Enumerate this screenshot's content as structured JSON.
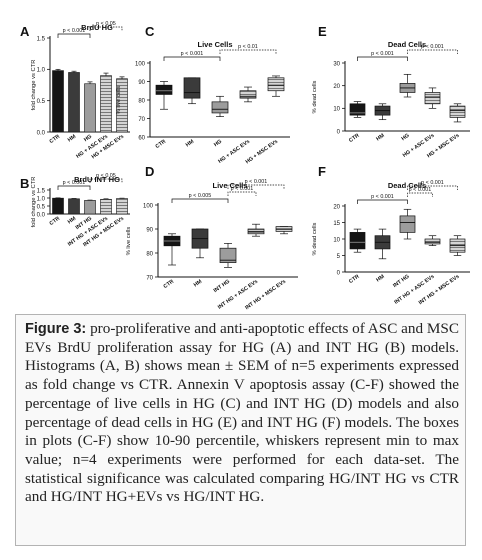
{
  "figure": {
    "panels": [
      {
        "letter": "A",
        "title": "BrdU HG"
      },
      {
        "letter": "B",
        "title": "BrdU INT HG"
      },
      {
        "letter": "C",
        "title": "Live Cells"
      },
      {
        "letter": "D",
        "title": "Live Cells"
      },
      {
        "letter": "E",
        "title": "Dead Cells"
      },
      {
        "letter": "F",
        "title": "Dead Cells"
      }
    ]
  },
  "caption": {
    "label": "Figure 3:",
    "text": "pro-proliferative and anti-apoptotic effects of ASC and MSC EVs BrdU proliferation assay for HG (A) and INT HG (B) models. Histograms (A, B) shows mean ± SEM of n=5 experiments expressed as fold change vs CTR. Annexin V apoptosis assay (C-F) showed the percentage of live cells in HG (C) and INT HG (D) models and also percentage of dead cells in HG (E) and INT HG (F) models. The boxes in plots (C-F) show 10-90 percentile, whiskers represent min to max value; n=4 experiments were performed for each data-set. The statistical significance was calculated comparing HG/INT HG vs CTR and HG/INT HG+EVs vs HG/INT HG."
  },
  "chart_data": [
    {
      "panel": "A",
      "type": "bar",
      "title": "BrdU HG",
      "ylabel": "fold change vs CTR",
      "ylim": [
        0,
        1.5
      ],
      "yticks": [
        0.0,
        0.5,
        1.0,
        1.5
      ],
      "categories": [
        "CTR",
        "HM",
        "HG",
        "HG + ASC EVs",
        "HG + MSC EVs"
      ],
      "values": [
        0.98,
        0.95,
        0.77,
        0.9,
        0.85
      ],
      "errors": [
        0.02,
        0.02,
        0.03,
        0.04,
        0.03
      ],
      "annotations": [
        {
          "text": "p < 0.001",
          "from": "CTR",
          "to": "HG"
        },
        {
          "text": "p < 0.05",
          "from": "HG",
          "to": "HG + MSC EVs"
        }
      ]
    },
    {
      "panel": "B",
      "type": "bar",
      "title": "BrdU INT HG",
      "ylabel": "fold change vs CTR",
      "ylim": [
        0,
        1.5
      ],
      "yticks": [
        0.0,
        0.5,
        1.0,
        1.5
      ],
      "categories": [
        "CTR",
        "HM",
        "INT HG",
        "INT HG + ASC EVs",
        "INT HG + MSC EVs"
      ],
      "values": [
        0.99,
        0.95,
        0.85,
        0.92,
        0.97
      ],
      "errors": [
        0.02,
        0.02,
        0.02,
        0.03,
        0.02
      ],
      "annotations": [
        {
          "text": "p < 0.001",
          "from": "CTR",
          "to": "INT HG"
        },
        {
          "text": "p < 0.05",
          "from": "INT HG",
          "to": "INT HG + MSC EVs"
        }
      ]
    },
    {
      "panel": "C",
      "type": "box",
      "title": "Live Cells",
      "ylabel": "% live cells",
      "ylim": [
        60,
        100
      ],
      "yticks": [
        60,
        70,
        80,
        90,
        100
      ],
      "categories": [
        "CTR",
        "HM",
        "HG",
        "HG + ASC EVs",
        "HG + MSC EVs"
      ],
      "boxes": [
        {
          "min": 75,
          "q1": 83,
          "med": 85,
          "q3": 88,
          "max": 90
        },
        {
          "min": 78,
          "q1": 81,
          "med": 84,
          "q3": 92,
          "max": 92
        },
        {
          "min": 71,
          "q1": 73,
          "med": 75,
          "q3": 79,
          "max": 82
        },
        {
          "min": 79,
          "q1": 81,
          "med": 82,
          "q3": 85,
          "max": 87
        },
        {
          "min": 82,
          "q1": 85,
          "med": 88,
          "q3": 92,
          "max": 93
        }
      ],
      "annotations": [
        {
          "text": "p < 0.001",
          "from": "CTR",
          "to": "HG"
        },
        {
          "text": "p < 0.01",
          "from": "HG",
          "to": "HG + MSC EVs"
        }
      ]
    },
    {
      "panel": "D",
      "type": "box",
      "title": "Live Cells",
      "ylabel": "% live cells",
      "ylim": [
        70,
        100
      ],
      "yticks": [
        70,
        80,
        90,
        100
      ],
      "categories": [
        "CTR",
        "HM",
        "INT HG",
        "INT HG + ASC EVs",
        "INT HG + MSC EVs"
      ],
      "boxes": [
        {
          "min": 75,
          "q1": 83,
          "med": 85,
          "q3": 87,
          "max": 88
        },
        {
          "min": 78,
          "q1": 82,
          "med": 86,
          "q3": 90,
          "max": 90
        },
        {
          "min": 74,
          "q1": 76,
          "med": 77,
          "q3": 82,
          "max": 84
        },
        {
          "min": 87,
          "q1": 88,
          "med": 89,
          "q3": 90,
          "max": 92
        },
        {
          "min": 88,
          "q1": 89,
          "med": 90,
          "q3": 91,
          "max": 91
        }
      ],
      "annotations": [
        {
          "text": "p < 0.005",
          "from": "CTR",
          "to": "INT HG"
        },
        {
          "text": "p < 0.001",
          "from": "INT HG",
          "to": "INT HG + ASC EVs"
        },
        {
          "text": "p < 0.001",
          "from": "INT HG",
          "to": "INT HG + MSC EVs"
        }
      ]
    },
    {
      "panel": "E",
      "type": "box",
      "title": "Dead Cells",
      "ylabel": "% dead cells",
      "ylim": [
        0,
        30
      ],
      "yticks": [
        0,
        10,
        20,
        30
      ],
      "categories": [
        "CTR",
        "HM",
        "HG",
        "HG + ASC EVs",
        "HG + MSC EVs"
      ],
      "boxes": [
        {
          "min": 6,
          "q1": 7,
          "med": 8,
          "q3": 12,
          "max": 13
        },
        {
          "min": 5,
          "q1": 7,
          "med": 9,
          "q3": 11,
          "max": 12
        },
        {
          "min": 15,
          "q1": 17,
          "med": 19,
          "q3": 21,
          "max": 25
        },
        {
          "min": 10,
          "q1": 12,
          "med": 15,
          "q3": 17,
          "max": 19
        },
        {
          "min": 4,
          "q1": 6,
          "med": 9,
          "q3": 11,
          "max": 12
        }
      ],
      "annotations": [
        {
          "text": "p < 0.001",
          "from": "CTR",
          "to": "HG"
        },
        {
          "text": "p < 0.001",
          "from": "HG",
          "to": "HG + MSC EVs"
        }
      ]
    },
    {
      "panel": "F",
      "type": "box",
      "title": "Dead Cells",
      "ylabel": "% dead cells",
      "ylim": [
        0,
        20
      ],
      "yticks": [
        0,
        5,
        10,
        15,
        20
      ],
      "categories": [
        "CTR",
        "HM",
        "INT HG",
        "INT HG + ASC EVs",
        "INT HG + MSC EVs"
      ],
      "boxes": [
        {
          "min": 6,
          "q1": 7,
          "med": 9,
          "q3": 12,
          "max": 13
        },
        {
          "min": 4,
          "q1": 7,
          "med": 9,
          "q3": 11,
          "max": 13
        },
        {
          "min": 10,
          "q1": 12,
          "med": 15,
          "q3": 17,
          "max": 19
        },
        {
          "min": 8,
          "q1": 8.5,
          "med": 9,
          "q3": 10,
          "max": 11
        },
        {
          "min": 5,
          "q1": 6,
          "med": 8,
          "q3": 10,
          "max": 11
        }
      ],
      "annotations": [
        {
          "text": "p < 0.001",
          "from": "CTR",
          "to": "INT HG"
        },
        {
          "text": "p < 0.001",
          "from": "INT HG",
          "to": "INT HG + ASC EVs"
        },
        {
          "text": "p < 0.001",
          "from": "INT HG",
          "to": "INT HG + MSC EVs"
        }
      ]
    }
  ]
}
